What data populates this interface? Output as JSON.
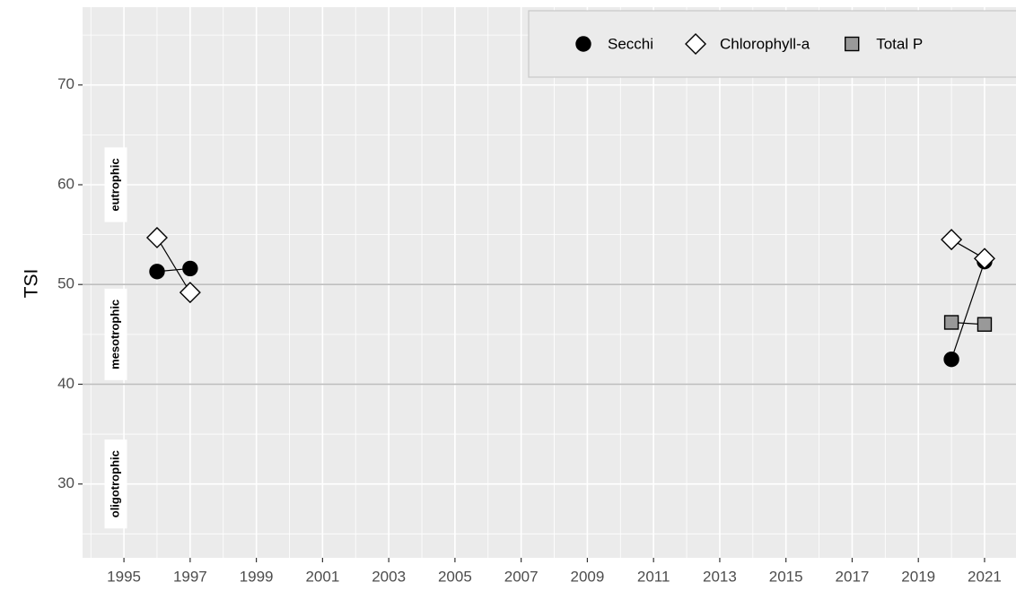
{
  "chart_data": {
    "type": "line",
    "y_label": "TSI",
    "x": [
      1996,
      1997,
      1998,
      1999,
      2000,
      2001,
      2002,
      2003,
      2004,
      2005,
      2006,
      2007,
      2008,
      2009,
      2010,
      2011,
      2012,
      2013,
      2014,
      2015,
      2016,
      2017,
      2018,
      2019,
      2020,
      2021
    ],
    "series": [
      {
        "name": "Secchi",
        "color": "#000000",
        "marker": "circle",
        "values": [
          51.3,
          51.6,
          null,
          null,
          null,
          null,
          null,
          null,
          null,
          null,
          null,
          null,
          null,
          null,
          null,
          null,
          null,
          null,
          null,
          null,
          null,
          null,
          null,
          null,
          42.5,
          52.3
        ]
      },
      {
        "name": "Chlorophyll-a",
        "color": "#ffffff",
        "marker": "diamond",
        "values": [
          54.7,
          49.2,
          null,
          null,
          null,
          null,
          null,
          null,
          null,
          null,
          null,
          null,
          null,
          null,
          null,
          null,
          null,
          null,
          null,
          null,
          null,
          null,
          null,
          null,
          54.5,
          52.6
        ]
      },
      {
        "name": "Total P",
        "color": "#999999",
        "marker": "square",
        "values": [
          null,
          null,
          null,
          null,
          null,
          null,
          null,
          null,
          null,
          null,
          null,
          null,
          null,
          null,
          null,
          null,
          null,
          null,
          null,
          null,
          null,
          null,
          null,
          null,
          46.2,
          46.0
        ]
      }
    ],
    "xlim": [
      1993.75,
      2021.95
    ],
    "xticks": [
      1995,
      1997,
      1999,
      2001,
      2003,
      2005,
      2007,
      2009,
      2011,
      2013,
      2015,
      2017,
      2019,
      2021
    ],
    "ylim": [
      22.6,
      77.8
    ],
    "yticks": [
      30,
      40,
      50,
      60,
      70
    ],
    "grid": true,
    "reference_lines": [
      40,
      50
    ],
    "annotations": [
      {
        "text": "eutrophic",
        "y": 60
      },
      {
        "text": "mesotrophic",
        "y": 45
      },
      {
        "text": "oligotrophic",
        "y": 30
      }
    ],
    "legend": "top-right"
  }
}
